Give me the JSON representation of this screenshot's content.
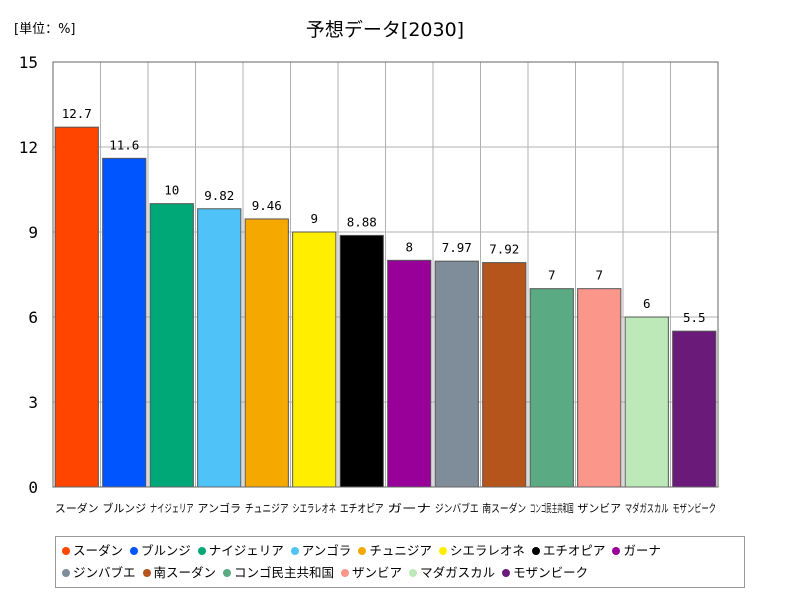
{
  "chart_data": {
    "type": "bar",
    "title": "予想データ[2030]",
    "unit_label": "[単位：%]",
    "categories": [
      "スーダン",
      "ブルンジ",
      "ナイジェリア",
      "アンゴラ",
      "チュニジア",
      "シエラレオネ",
      "エチオピア",
      "ガーナ",
      "ジンバブエ",
      "南スーダン",
      "コンゴ民主共和国",
      "ザンビア",
      "マダガスカル",
      "モザンビーク"
    ],
    "values": [
      12.7,
      11.6,
      10,
      9.82,
      9.46,
      9,
      8.88,
      8,
      7.97,
      7.92,
      7,
      7,
      6,
      5.5
    ],
    "value_labels": [
      "12.7",
      "11.6",
      "10",
      "9.82",
      "9.46",
      "9",
      "8.88",
      "8",
      "7.97",
      "7.92",
      "7",
      "7",
      "6",
      "5.5"
    ],
    "colors": [
      "#ff4500",
      "#0055ff",
      "#00a878",
      "#4fc3f7",
      "#f5a800",
      "#ffee00",
      "#000000",
      "#990099",
      "#7f8c9a",
      "#b5541b",
      "#5aab84",
      "#fa968a",
      "#bde8b8",
      "#6a1b7a"
    ],
    "ylim": [
      0,
      15
    ],
    "yticks": [
      0,
      3,
      6,
      9,
      12,
      15
    ],
    "grid": true,
    "legend_position": "bottom"
  }
}
